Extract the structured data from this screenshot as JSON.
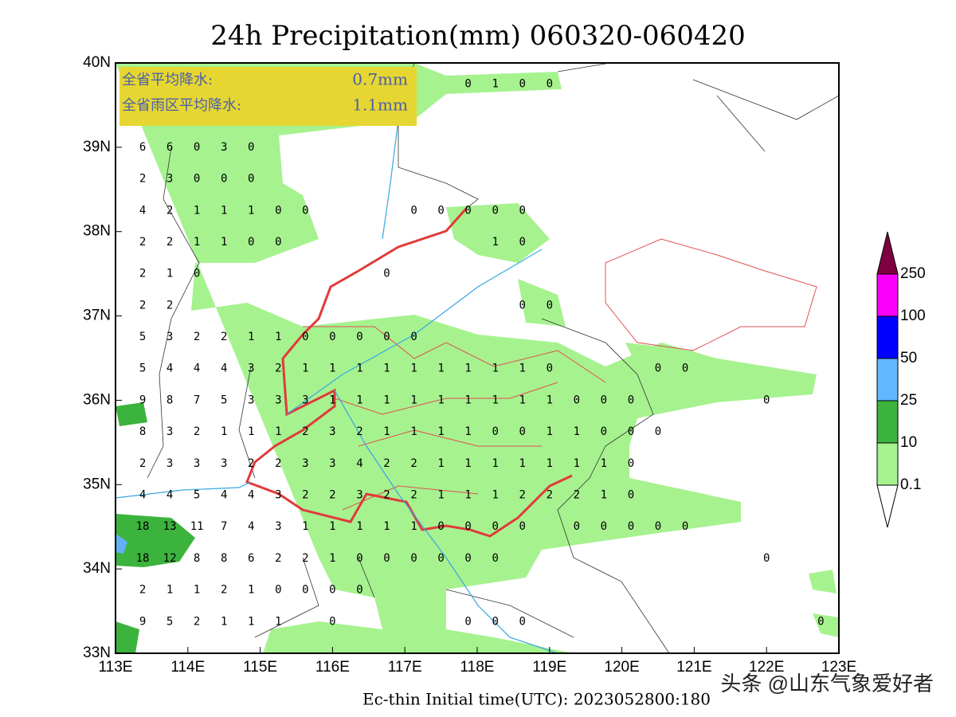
{
  "title": "24h Precipitation(mm) 060320-060420",
  "footer": "Ec-thin   Initial time(UTC): 2023052800:180",
  "watermark": "头条 @山东气象爱好者",
  "info": [
    {
      "label": "全省平均降水:",
      "value": "0.7mm"
    },
    {
      "label": "全省雨区平均降水:",
      "value": "1.1mm"
    }
  ],
  "map": {
    "lonlim": [
      113,
      123
    ],
    "latlim": [
      33,
      40
    ],
    "xticks": [
      {
        "value": 113,
        "label": "113E"
      },
      {
        "value": 114,
        "label": "114E"
      },
      {
        "value": 115,
        "label": "115E"
      },
      {
        "value": 116,
        "label": "116E"
      },
      {
        "value": 117,
        "label": "117E"
      },
      {
        "value": 118,
        "label": "118E"
      },
      {
        "value": 119,
        "label": "119E"
      },
      {
        "value": 120,
        "label": "120E"
      },
      {
        "value": 121,
        "label": "121E"
      },
      {
        "value": 122,
        "label": "122E"
      },
      {
        "value": 123,
        "label": "123E"
      }
    ],
    "yticks": [
      {
        "value": 33,
        "label": "33N"
      },
      {
        "value": 34,
        "label": "34N"
      },
      {
        "value": 35,
        "label": "35N"
      },
      {
        "value": 36,
        "label": "36N"
      },
      {
        "value": 37,
        "label": "37N"
      },
      {
        "value": 38,
        "label": "38N"
      },
      {
        "value": 39,
        "label": "39N"
      },
      {
        "value": 40,
        "label": "40N"
      }
    ],
    "station_lons": [
      113,
      113.375,
      113.75,
      114.125,
      114.5,
      114.875,
      115.25,
      115.625,
      116,
      116.375,
      116.75,
      117.125,
      117.5,
      117.875,
      118.25,
      118.625,
      119,
      119.375,
      119.75,
      120.125,
      120.5,
      120.875,
      121.25,
      121.625,
      122,
      122.375,
      122.75
    ],
    "stations": [
      {
        "lat": 39.75,
        "values": [
          null,
          null,
          null,
          null,
          null,
          null,
          null,
          null,
          null,
          null,
          null,
          null,
          null,
          0,
          1,
          0,
          0
        ]
      },
      {
        "lat": 39,
        "values": [
          null,
          6,
          6,
          0,
          3,
          0
        ]
      },
      {
        "lat": 38.625,
        "values": [
          null,
          2,
          3,
          0,
          0,
          0
        ]
      },
      {
        "lat": 38.25,
        "values": [
          null,
          4,
          2,
          1,
          1,
          1,
          0,
          0,
          null,
          null,
          null,
          0,
          0,
          0,
          0,
          0
        ]
      },
      {
        "lat": 37.875,
        "values": [
          null,
          2,
          2,
          1,
          1,
          0,
          0,
          null,
          null,
          null,
          null,
          null,
          null,
          null,
          1,
          0
        ]
      },
      {
        "lat": 37.5,
        "values": [
          null,
          2,
          1,
          0,
          null,
          null,
          null,
          null,
          null,
          null,
          0
        ]
      },
      {
        "lat": 37.125,
        "values": [
          null,
          2,
          2,
          null,
          null,
          null,
          null,
          null,
          null,
          null,
          null,
          null,
          null,
          null,
          null,
          0,
          0
        ]
      },
      {
        "lat": 36.75,
        "values": [
          null,
          5,
          3,
          2,
          2,
          1,
          1,
          0,
          0,
          0,
          0,
          0
        ]
      },
      {
        "lat": 36.375,
        "values": [
          null,
          5,
          4,
          4,
          4,
          3,
          2,
          1,
          1,
          1,
          1,
          1,
          1,
          1,
          1,
          1,
          0,
          null,
          null,
          null,
          0,
          0
        ]
      },
      {
        "lat": 36,
        "values": [
          null,
          9,
          8,
          7,
          5,
          3,
          3,
          3,
          1,
          1,
          1,
          1,
          1,
          1,
          1,
          1,
          1,
          0,
          0,
          0,
          null,
          null,
          null,
          null,
          0
        ]
      },
      {
        "lat": 35.625,
        "values": [
          null,
          8,
          3,
          2,
          1,
          1,
          1,
          2,
          3,
          2,
          1,
          1,
          1,
          1,
          0,
          0,
          1,
          1,
          0,
          0,
          0
        ]
      },
      {
        "lat": 35.25,
        "values": [
          null,
          2,
          3,
          3,
          3,
          2,
          2,
          3,
          3,
          4,
          2,
          2,
          1,
          1,
          1,
          1,
          1,
          1,
          1,
          0
        ]
      },
      {
        "lat": 34.875,
        "values": [
          null,
          4,
          4,
          5,
          4,
          4,
          3,
          2,
          2,
          3,
          2,
          2,
          1,
          1,
          1,
          2,
          2,
          2,
          1,
          0
        ]
      },
      {
        "lat": 34.5,
        "values": [
          null,
          18,
          13,
          11,
          7,
          4,
          3,
          1,
          1,
          1,
          1,
          1,
          0,
          0,
          0,
          0,
          null,
          0,
          0,
          0,
          0,
          0
        ]
      },
      {
        "lat": 34.125,
        "values": [
          null,
          18,
          12,
          8,
          8,
          6,
          2,
          2,
          1,
          0,
          0,
          0,
          0,
          0,
          0,
          null,
          null,
          null,
          null,
          null,
          null,
          null,
          null,
          null,
          0
        ]
      },
      {
        "lat": 33.75,
        "values": [
          null,
          2,
          1,
          1,
          2,
          1,
          0,
          0,
          0,
          0
        ]
      },
      {
        "lat": 33.375,
        "values": [
          null,
          9,
          5,
          2,
          1,
          1,
          1,
          null,
          0,
          null,
          null,
          null,
          null,
          0,
          0,
          0,
          null,
          null,
          null,
          null,
          null,
          null,
          null,
          null,
          null,
          null,
          0
        ]
      }
    ]
  },
  "colorbar": {
    "levels": [
      0.1,
      10,
      25,
      50,
      100,
      250
    ],
    "colors": [
      "#ffffff",
      "#a6f28f",
      "#3cb33c",
      "#62b8ff",
      "#0000fe",
      "#fa00fa",
      "#7f0040"
    ]
  }
}
